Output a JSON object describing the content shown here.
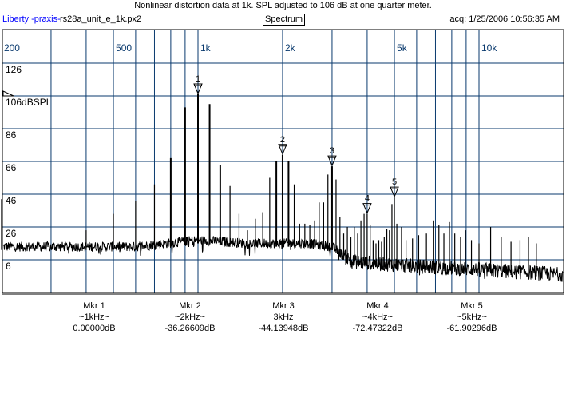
{
  "header": {
    "title": "Nonlinear distortion data at 1k. SPL adjusted to 106 dB at one quarter meter.",
    "brand": "Liberty -praxis-",
    "file": "rs28a_unit_e_1k.px2",
    "view": "Spectrum",
    "acq": "acq: 1/25/2006 10:56:35 AM"
  },
  "colors": {
    "grid": "#0a3a6e",
    "trace": "#000000",
    "freq_label": "#0a3a6e",
    "brand": "#0000ff"
  },
  "chart_data": {
    "type": "line",
    "title": "Spectrum",
    "xscale": "log",
    "xlim": [
      200,
      20000
    ],
    "ylim": [
      -14,
      146
    ],
    "grid": true,
    "reference_label": "106dBSPL",
    "reference_db": 106,
    "x_tick_labels": [
      {
        "f": 200,
        "label": "200"
      },
      {
        "f": 500,
        "label": "500"
      },
      {
        "f": 1000,
        "label": "1k"
      },
      {
        "f": 2000,
        "label": "2k"
      },
      {
        "f": 5000,
        "label": "5k"
      },
      {
        "f": 10000,
        "label": "10k"
      }
    ],
    "x_grid": [
      300,
      400,
      500,
      600,
      700,
      800,
      900,
      1000,
      2000,
      3000,
      4000,
      5000,
      6000,
      7000,
      8000,
      9000,
      10000
    ],
    "y_ticks": [
      {
        "v": 126,
        "label": "126"
      },
      {
        "v": 106,
        "label": "106dBSPL"
      },
      {
        "v": 86,
        "label": "86"
      },
      {
        "v": 66,
        "label": "66"
      },
      {
        "v": 46,
        "label": "46"
      },
      {
        "v": 26,
        "label": "26"
      },
      {
        "v": 6,
        "label": "6"
      }
    ],
    "noise_floor": [
      [
        200,
        14
      ],
      [
        600,
        14
      ],
      [
        1000,
        18
      ],
      [
        1500,
        16
      ],
      [
        2500,
        16
      ],
      [
        3000,
        14
      ],
      [
        3500,
        5
      ],
      [
        6000,
        2
      ],
      [
        10000,
        0
      ],
      [
        20000,
        -3
      ]
    ],
    "peaks": [
      [
        200,
        43
      ],
      [
        400,
        24
      ],
      [
        500,
        34
      ],
      [
        600,
        42
      ],
      [
        700,
        52
      ],
      [
        800,
        68
      ],
      [
        900,
        99
      ],
      [
        1000,
        107
      ],
      [
        1100,
        101
      ],
      [
        1200,
        64
      ],
      [
        1300,
        51
      ],
      [
        1400,
        34
      ],
      [
        1500,
        24
      ],
      [
        1600,
        31
      ],
      [
        1700,
        35
      ],
      [
        1800,
        56
      ],
      [
        1900,
        66
      ],
      [
        2000,
        70
      ],
      [
        2100,
        66
      ],
      [
        2200,
        52
      ],
      [
        2300,
        28
      ],
      [
        2400,
        28
      ],
      [
        2500,
        27
      ],
      [
        2600,
        30
      ],
      [
        2700,
        41
      ],
      [
        2800,
        41
      ],
      [
        2900,
        58
      ],
      [
        3000,
        63
      ],
      [
        3100,
        55
      ],
      [
        3200,
        32
      ],
      [
        3300,
        22
      ],
      [
        3400,
        26
      ],
      [
        3500,
        20
      ],
      [
        3600,
        26
      ],
      [
        3700,
        22
      ],
      [
        3800,
        30
      ],
      [
        3900,
        34
      ],
      [
        4000,
        34
      ],
      [
        4100,
        27
      ],
      [
        4200,
        18
      ],
      [
        4300,
        16
      ],
      [
        4400,
        18
      ],
      [
        4500,
        17
      ],
      [
        4600,
        20
      ],
      [
        4700,
        25
      ],
      [
        4800,
        24
      ],
      [
        4900,
        40
      ],
      [
        5000,
        44
      ],
      [
        5100,
        28
      ],
      [
        5300,
        26
      ],
      [
        5500,
        18
      ],
      [
        5800,
        19
      ],
      [
        6100,
        21
      ],
      [
        6500,
        22
      ],
      [
        6900,
        30
      ],
      [
        7200,
        27
      ],
      [
        7500,
        22
      ],
      [
        7850,
        29
      ],
      [
        8200,
        22
      ],
      [
        8600,
        20
      ],
      [
        8950,
        24
      ],
      [
        9400,
        18
      ],
      [
        10000,
        16
      ],
      [
        11000,
        26
      ],
      [
        12000,
        20
      ],
      [
        13000,
        17
      ],
      [
        14000,
        18
      ],
      [
        15000,
        20
      ],
      [
        16000,
        16
      ]
    ],
    "markers": [
      {
        "id": "1",
        "f": 1000,
        "db": 107,
        "name": "Mkr 1",
        "freq_label": "~1kHz~",
        "value": "0.00000dB"
      },
      {
        "id": "2",
        "f": 2000,
        "db": 70,
        "name": "Mkr 2",
        "freq_label": "~2kHz~",
        "value": "-36.26609dB"
      },
      {
        "id": "3",
        "f": 3000,
        "db": 63,
        "name": "Mkr 3",
        "freq_label": "3kHz",
        "value": "-44.13948dB"
      },
      {
        "id": "4",
        "f": 4000,
        "db": 34,
        "name": "Mkr 4",
        "freq_label": "~4kHz~",
        "value": "-72.47322dB"
      },
      {
        "id": "5",
        "f": 5000,
        "db": 44,
        "name": "Mkr 5",
        "freq_label": "~5kHz~",
        "value": "-61.90296dB"
      }
    ]
  }
}
